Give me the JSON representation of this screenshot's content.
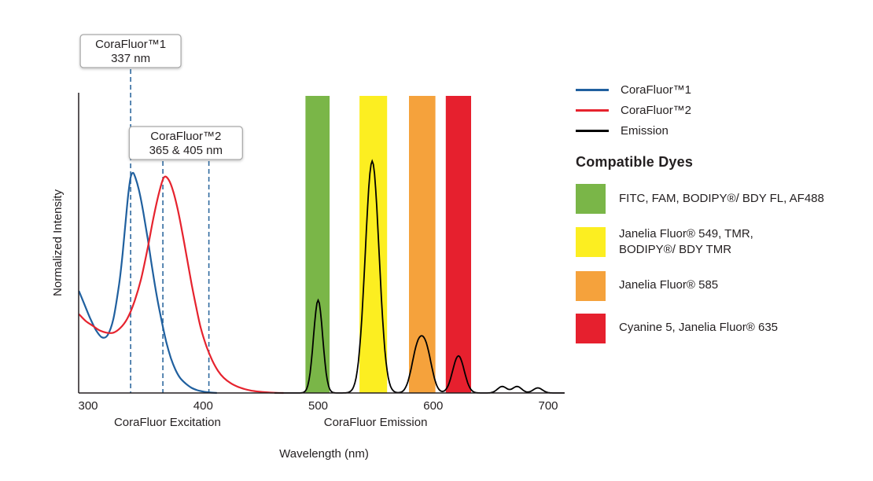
{
  "chart_data": {
    "type": "line",
    "title": "",
    "xlabel": "Wavelength (nm)",
    "ylabel": "Normalized Intensity",
    "x_ticks": [
      300,
      400,
      500,
      600,
      700
    ],
    "xlim": [
      292,
      715
    ],
    "ylim": [
      0,
      1.05
    ],
    "grid": false,
    "legend_position": "right",
    "axis_region_labels": [
      {
        "label": "CoraFluor Excitation",
        "center_nm": 369
      },
      {
        "label": "CoraFluor Emission",
        "center_nm": 550
      }
    ],
    "series": [
      {
        "name": "CoraFluor™1",
        "kind": "excitation",
        "color": "#20609f",
        "points": [
          [
            292,
            0.44
          ],
          [
            297,
            0.38
          ],
          [
            302,
            0.32
          ],
          [
            307,
            0.27
          ],
          [
            312,
            0.24
          ],
          [
            317,
            0.25
          ],
          [
            322,
            0.32
          ],
          [
            327,
            0.47
          ],
          [
            330,
            0.6
          ],
          [
            333,
            0.76
          ],
          [
            335,
            0.86
          ],
          [
            337,
            0.93
          ],
          [
            339,
            0.95
          ],
          [
            341,
            0.93
          ],
          [
            344,
            0.88
          ],
          [
            348,
            0.78
          ],
          [
            352,
            0.66
          ],
          [
            356,
            0.53
          ],
          [
            360,
            0.41
          ],
          [
            364,
            0.31
          ],
          [
            368,
            0.22
          ],
          [
            372,
            0.15
          ],
          [
            376,
            0.1
          ],
          [
            380,
            0.065
          ],
          [
            385,
            0.04
          ],
          [
            390,
            0.022
          ],
          [
            395,
            0.012
          ],
          [
            400,
            0.006
          ],
          [
            406,
            0.002
          ],
          [
            412,
            0
          ]
        ]
      },
      {
        "name": "CoraFluor™2",
        "kind": "excitation",
        "color": "#e6232e",
        "points": [
          [
            292,
            0.34
          ],
          [
            298,
            0.31
          ],
          [
            304,
            0.29
          ],
          [
            310,
            0.27
          ],
          [
            316,
            0.26
          ],
          [
            322,
            0.26
          ],
          [
            328,
            0.28
          ],
          [
            334,
            0.32
          ],
          [
            340,
            0.39
          ],
          [
            346,
            0.49
          ],
          [
            352,
            0.63
          ],
          [
            357,
            0.76
          ],
          [
            362,
            0.87
          ],
          [
            366,
            0.93
          ],
          [
            370,
            0.92
          ],
          [
            374,
            0.87
          ],
          [
            378,
            0.79
          ],
          [
            382,
            0.69
          ],
          [
            386,
            0.58
          ],
          [
            390,
            0.47
          ],
          [
            394,
            0.37
          ],
          [
            398,
            0.28
          ],
          [
            403,
            0.2
          ],
          [
            408,
            0.14
          ],
          [
            413,
            0.095
          ],
          [
            418,
            0.065
          ],
          [
            424,
            0.042
          ],
          [
            430,
            0.027
          ],
          [
            436,
            0.017
          ],
          [
            442,
            0.01
          ],
          [
            448,
            0.006
          ],
          [
            455,
            0.003
          ],
          [
            462,
            0.001
          ],
          [
            470,
            0
          ]
        ]
      },
      {
        "name": "Emission",
        "kind": "emission",
        "color": "#000000",
        "peaks": [
          {
            "center": 500,
            "height": 0.4,
            "sigma": 4
          },
          {
            "center": 547,
            "height": 1.0,
            "sigma": 6
          },
          {
            "center": 586,
            "height": 0.17,
            "sigma": 5
          },
          {
            "center": 594,
            "height": 0.17,
            "sigma": 5
          },
          {
            "center": 622,
            "height": 0.16,
            "sigma": 5
          },
          {
            "center": 660,
            "height": 0.028,
            "sigma": 4
          },
          {
            "center": 673,
            "height": 0.028,
            "sigma": 4
          },
          {
            "center": 691,
            "height": 0.022,
            "sigma": 4
          }
        ]
      }
    ],
    "dye_bands": [
      {
        "dyes": "FITC, FAM, BODIPY®/ BDY FL, AF488",
        "color": "#7ab648",
        "from_nm": 489,
        "to_nm": 510
      },
      {
        "dyes": "Janelia Fluor® 549, TMR, BODIPY®/ BDY TMR",
        "color": "#fcee21",
        "from_nm": 536,
        "to_nm": 560
      },
      {
        "dyes": "Janelia Fluor® 585",
        "color": "#f5a23c",
        "from_nm": 579,
        "to_nm": 602
      },
      {
        "dyes": "Cyanine 5, Janelia Fluor® 635",
        "color": "#e6202e",
        "from_nm": 611,
        "to_nm": 633
      }
    ],
    "callouts": [
      {
        "line1": "CoraFluor™1",
        "line2": "337 nm",
        "marker_nm": [
          337
        ]
      },
      {
        "line1": "CoraFluor™2",
        "line2": "365 & 405 nm",
        "marker_nm": [
          365,
          405
        ]
      }
    ],
    "marker_line_color": "#2f6a9f"
  },
  "legend": {
    "series": [
      {
        "label": "CoraFluor™1",
        "color": "#20609f"
      },
      {
        "label": "CoraFluor™2",
        "color": "#e6232e"
      },
      {
        "label": "Emission",
        "color": "#000000"
      }
    ],
    "compatible_dyes_heading": "Compatible Dyes",
    "dyes": [
      {
        "label": "FITC, FAM, BODIPY®/ BDY FL, AF488",
        "color": "#7ab648"
      },
      {
        "label": "Janelia Fluor® 549, TMR,\nBODIPY®/ BDY TMR",
        "color": "#fcee21"
      },
      {
        "label": "Janelia Fluor® 585",
        "color": "#f5a23c"
      },
      {
        "label": "Cyanine 5, Janelia Fluor® 635",
        "color": "#e6202e"
      }
    ]
  }
}
